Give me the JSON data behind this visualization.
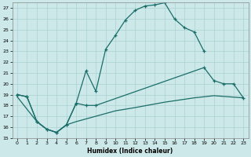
{
  "xlabel": "Humidex (Indice chaleur)",
  "bg_color": "#cce8e8",
  "grid_color": "#aad0d0",
  "line_color": "#1a6e6a",
  "xlim": [
    -0.5,
    23.5
  ],
  "ylim": [
    15,
    27.5
  ],
  "yticks": [
    15,
    16,
    17,
    18,
    19,
    20,
    21,
    22,
    23,
    24,
    25,
    26,
    27
  ],
  "xticks": [
    0,
    1,
    2,
    3,
    4,
    5,
    6,
    7,
    8,
    9,
    10,
    11,
    12,
    13,
    14,
    15,
    16,
    17,
    18,
    19,
    20,
    21,
    22,
    23
  ],
  "curve1_x": [
    0,
    1,
    2,
    3,
    4,
    5,
    6,
    7,
    8,
    9,
    10,
    11,
    12,
    13,
    14,
    15,
    16,
    17,
    18,
    19
  ],
  "curve1_y": [
    19.0,
    18.8,
    16.5,
    15.8,
    15.5,
    16.2,
    18.2,
    21.2,
    19.3,
    23.2,
    24.5,
    25.9,
    26.8,
    27.2,
    27.3,
    27.5,
    26.0,
    25.2,
    24.8,
    23.0
  ],
  "curve2_x": [
    0,
    1,
    2,
    3,
    4,
    5,
    6,
    7,
    8,
    19,
    20,
    21,
    22,
    23
  ],
  "curve2_y": [
    19.0,
    18.8,
    16.5,
    15.8,
    15.5,
    16.2,
    18.2,
    18.0,
    18.0,
    21.5,
    20.3,
    20.0,
    20.0,
    18.7
  ],
  "curve3_x": [
    0,
    2,
    3,
    4,
    5,
    6,
    8,
    10,
    12,
    15,
    18,
    20,
    23
  ],
  "curve3_y": [
    18.8,
    16.5,
    15.8,
    15.5,
    16.2,
    16.5,
    17.0,
    17.5,
    17.8,
    18.3,
    18.7,
    18.9,
    18.7
  ]
}
